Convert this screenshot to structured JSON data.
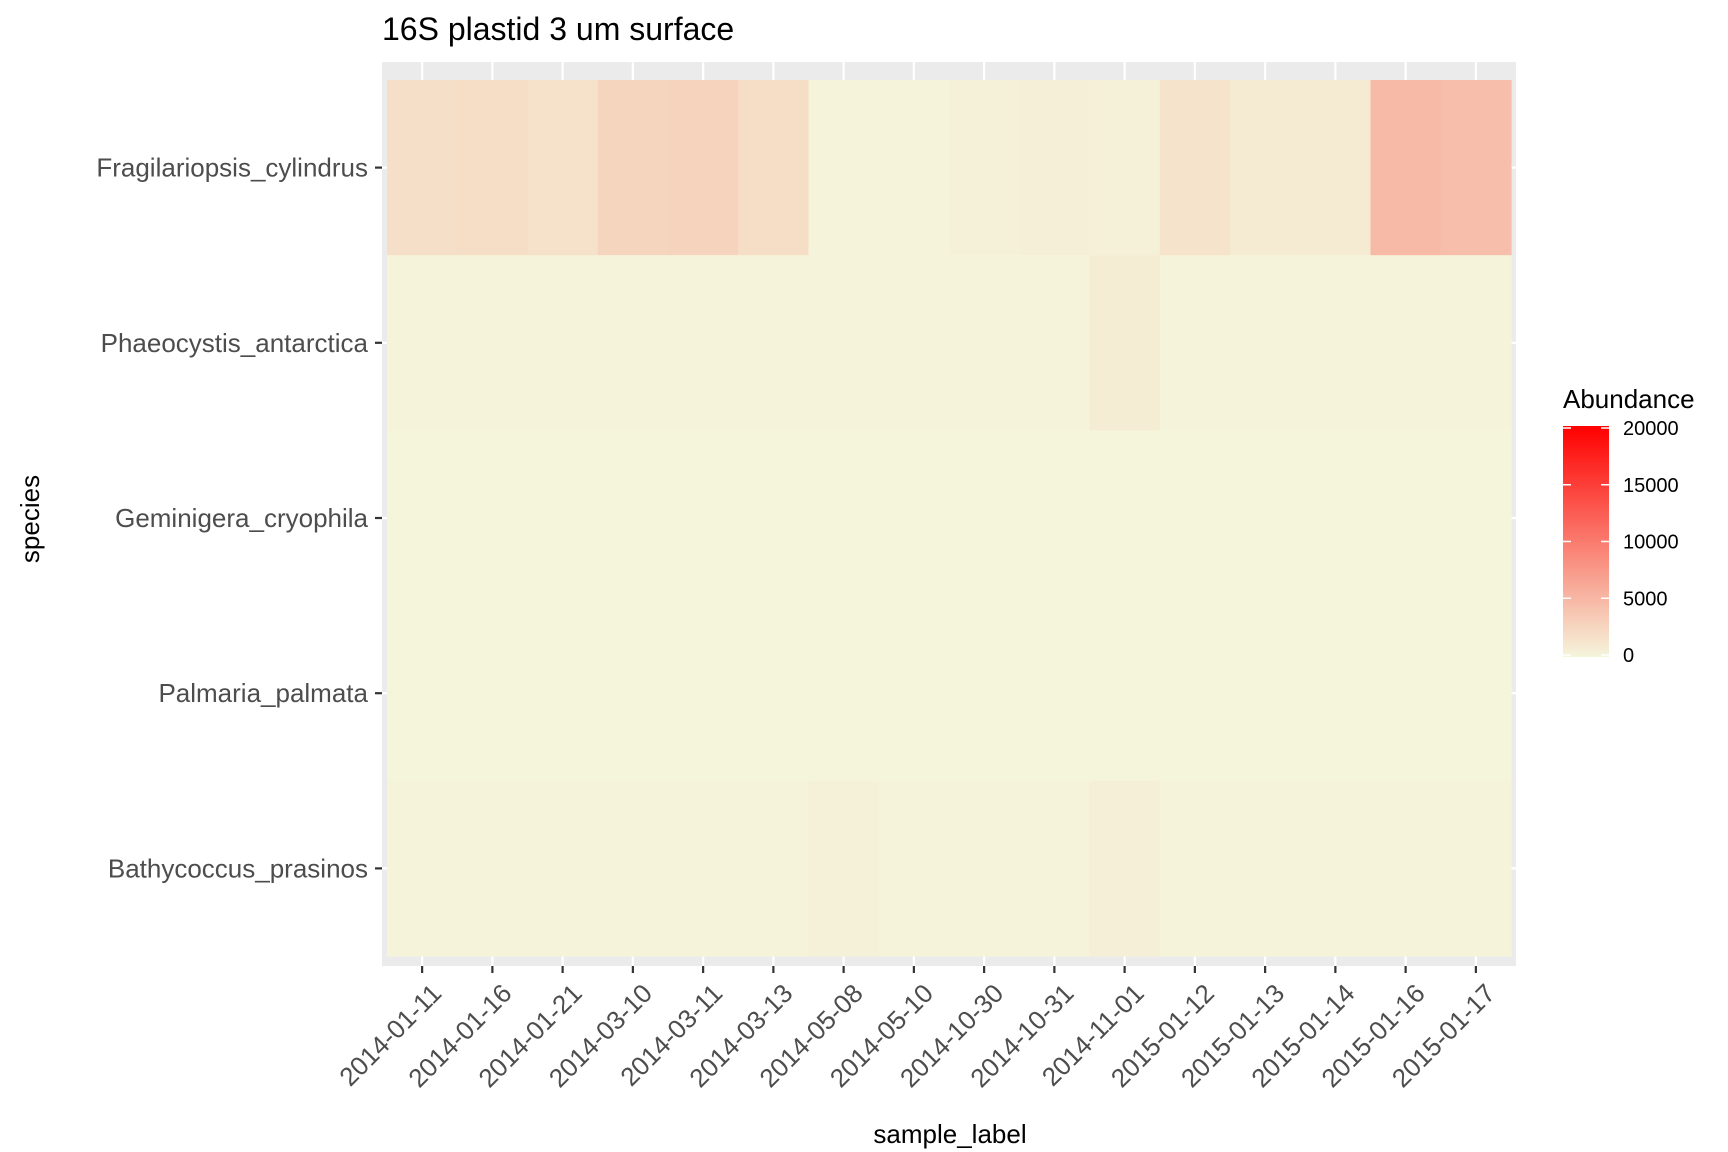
{
  "chart_data": {
    "type": "heatmap",
    "title": "16S plastid 3 um surface",
    "xlabel": "sample_label",
    "ylabel": "species",
    "x": [
      "2014-01-11",
      "2014-01-16",
      "2014-01-21",
      "2014-03-10",
      "2014-03-11",
      "2014-03-13",
      "2014-05-08",
      "2014-05-10",
      "2014-10-30",
      "2014-10-31",
      "2014-11-01",
      "2015-01-12",
      "2015-01-13",
      "2015-01-14",
      "2015-01-16",
      "2015-01-17"
    ],
    "y": [
      "Fragilariopsis_cylindrus",
      "Phaeocystis_antarctica",
      "Geminigera_cryophila",
      "Palmaria_palmata",
      "Bathycoccus_prasinos"
    ],
    "values": [
      [
        1800,
        2000,
        1600,
        2600,
        2800,
        2000,
        200,
        150,
        300,
        500,
        350,
        1500,
        900,
        800,
        4800,
        4500
      ],
      [
        50,
        50,
        50,
        50,
        50,
        50,
        50,
        50,
        50,
        50,
        700,
        50,
        50,
        50,
        50,
        50
      ],
      [
        0,
        0,
        0,
        0,
        0,
        0,
        0,
        0,
        0,
        0,
        0,
        0,
        0,
        0,
        0,
        0
      ],
      [
        0,
        0,
        0,
        0,
        0,
        0,
        0,
        0,
        0,
        0,
        0,
        0,
        0,
        0,
        0,
        0
      ],
      [
        100,
        100,
        100,
        100,
        100,
        100,
        400,
        100,
        100,
        150,
        500,
        100,
        100,
        100,
        100,
        100
      ]
    ],
    "legend": {
      "title": "Abundance",
      "placement": "right",
      "ticks": [
        0,
        5000,
        10000,
        15000,
        20000
      ],
      "range": [
        0,
        20000
      ],
      "low_color": "#f5f5dc",
      "high_color": "#ff0000"
    },
    "panel_background": "#ebebeb",
    "grid": true
  }
}
